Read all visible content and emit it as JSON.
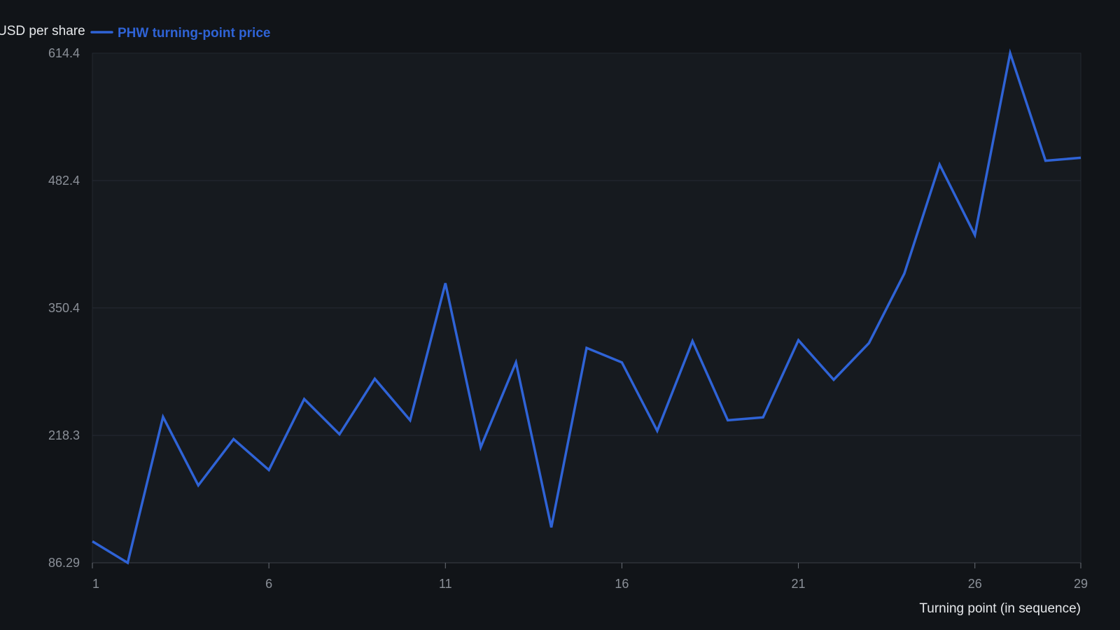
{
  "chart_data": {
    "type": "line",
    "xlabel": "Turning point (in sequence)",
    "ylabel": "USD per share",
    "x": [
      1,
      2,
      3,
      4,
      5,
      6,
      7,
      8,
      9,
      10,
      11,
      12,
      13,
      14,
      15,
      16,
      17,
      18,
      19,
      20,
      21,
      22,
      23,
      24,
      25,
      26,
      27,
      28,
      29
    ],
    "series": [
      {
        "name": "PHW turning-point price",
        "color": "#2f63d6",
        "values": [
          108.5,
          86.29,
          237.5,
          166.5,
          214.5,
          182.5,
          256,
          219.5,
          277,
          234,
          376,
          206,
          294,
          123,
          309,
          294,
          223,
          316,
          234,
          237,
          317,
          276,
          314,
          386,
          499,
          426,
          614.4,
          503,
          506
        ]
      }
    ],
    "xlim": [
      1,
      29
    ],
    "ylim": [
      86.29,
      614.4
    ],
    "xticks": [
      1,
      6,
      11,
      16,
      21,
      26,
      29
    ],
    "yticks": [
      "86.29",
      "218.3",
      "350.4",
      "482.4",
      "614.4"
    ],
    "grid": true,
    "legend_position": "top-left"
  }
}
